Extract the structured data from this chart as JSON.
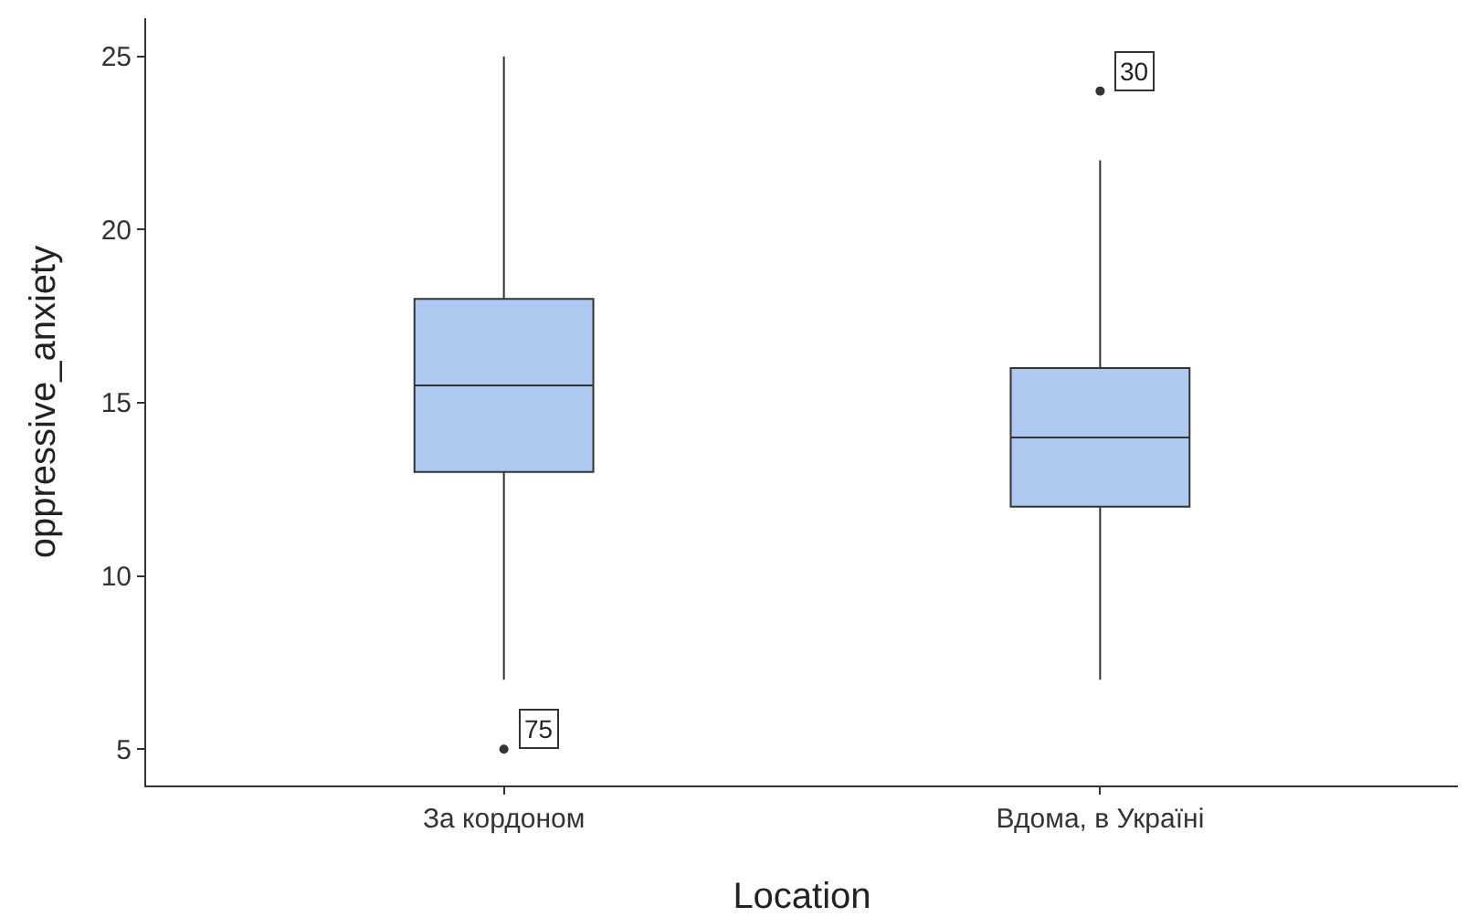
{
  "chart_data": {
    "type": "box",
    "xlabel": "Location",
    "ylabel": "oppressive_anxiety",
    "categories": [
      "За кордоном",
      "Вдома, в Україні"
    ],
    "series": [
      {
        "color": "#aec8f0",
        "boxes": [
          {
            "low": 7,
            "q1": 13,
            "median": 15.5,
            "q3": 18,
            "high": 25,
            "outliers": [
              5
            ]
          },
          {
            "low": 7,
            "q1": 12,
            "median": 14,
            "q3": 16,
            "high": 22,
            "outliers": [
              24
            ]
          }
        ]
      }
    ],
    "ylim": [
      3.95,
      26.1
    ],
    "yticks": [
      5,
      10,
      15,
      20,
      25
    ],
    "grid": false,
    "annotations": [
      "75",
      "30"
    ]
  }
}
